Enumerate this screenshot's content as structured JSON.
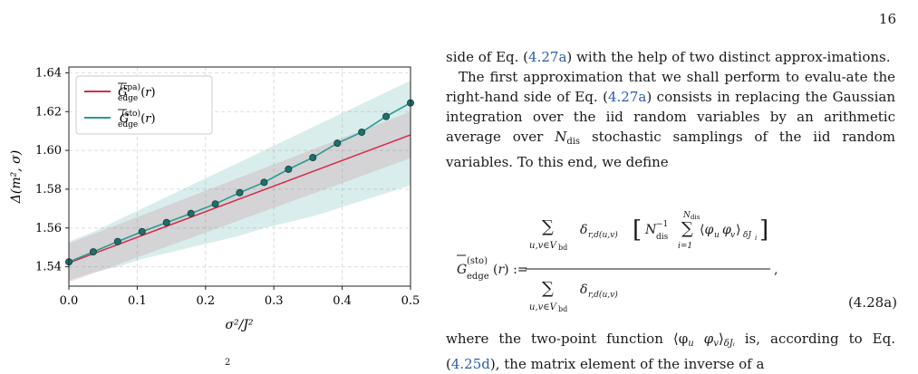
{
  "page_number": "16",
  "chart_data": {
    "type": "line",
    "xlabel": "σ²/J²",
    "ylabel": "Δ(m², σ)",
    "xlim": [
      0,
      0.5
    ],
    "ylim": [
      1.53,
      1.643
    ],
    "xticks": [
      "0.0",
      "0.1",
      "0.2",
      "0.3",
      "0.4",
      "0.5"
    ],
    "yticks": [
      "1.54",
      "1.56",
      "1.58",
      "1.60",
      "1.62",
      "1.64"
    ],
    "grid": true,
    "legend_position": "top-left",
    "series": [
      {
        "name": "Ḡ_edge^(rpa)(r)",
        "color": "#d62d4a",
        "x": [
          0,
          0.5
        ],
        "y": [
          1.542,
          1.608
        ],
        "band_lower": [
          1.532,
          1.596
        ],
        "band_upper": [
          1.552,
          1.62
        ]
      },
      {
        "name": "Ḡ_edge^(sto)(r)",
        "color": "#2a9a93",
        "x": [
          0,
          0.0357,
          0.0714,
          0.1071,
          0.1429,
          0.1786,
          0.2143,
          0.25,
          0.2857,
          0.3214,
          0.3571,
          0.3929,
          0.4286,
          0.4643,
          0.5
        ],
        "y": [
          1.5425,
          1.5477,
          1.553,
          1.5581,
          1.5628,
          1.5675,
          1.5724,
          1.5782,
          1.5835,
          1.5903,
          1.5963,
          1.6037,
          1.6094,
          1.6175,
          1.6245
        ],
        "band_lower": [
          1.533,
          1.537,
          1.54,
          1.544,
          1.547,
          1.55,
          1.553,
          1.556,
          1.56,
          1.563,
          1.566,
          1.57,
          1.574,
          1.578,
          1.582
        ],
        "band_upper": [
          1.553,
          1.558,
          1.564,
          1.57,
          1.576,
          1.582,
          1.588,
          1.594,
          1.6,
          1.606,
          1.612,
          1.618,
          1.624,
          1.63,
          1.636
        ],
        "markers": true
      }
    ]
  },
  "text": {
    "p1_a": "side of Eq. (",
    "p1_ref": "4.27a",
    "p1_b": ") with the help of two distinct approx-imations.",
    "p2_a": "The first approximation that we shall perform to evalu-ate the right-hand side of Eq. (",
    "p2_ref": "4.27a",
    "p2_b": ") consists in replacing the Gaussian integration over the iid random variables by an arithmetic average over ",
    "p2_ndis": "N",
    "p2_ndis_sub": "dis",
    "p2_c": " stochastic samplings of the iid random variables. To this end, we define",
    "eq_label": "(4.28a)",
    "p3_a": "where the two-point function ⟨φ",
    "p3_u": "u",
    "p3_mid": " φ",
    "p3_v": "v",
    "p3_b": "⟩",
    "p3_sub": "δJᵢ",
    "p3_c": " is, according to Eq. (",
    "p3_ref": "4.25d",
    "p3_d": "), the matrix element of the inverse of a"
  },
  "caption_stub": "2"
}
